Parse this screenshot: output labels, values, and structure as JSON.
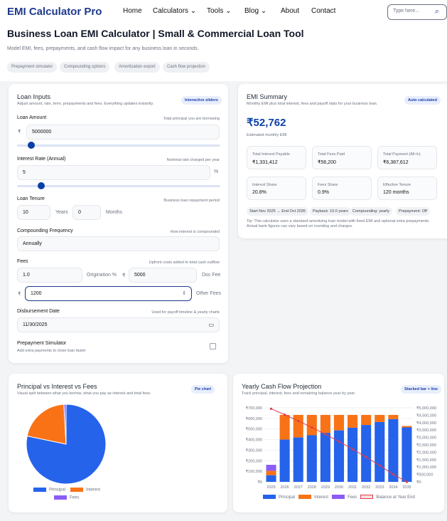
{
  "nav": {
    "logo": "EMI Calculator Pro",
    "links": [
      "Home",
      "Calculators ⌄",
      "Tools ⌄",
      "Blog ⌄",
      "About",
      "Contact"
    ],
    "search_placeholder": "Type here..."
  },
  "header": {
    "title": "Business Loan EMI Calculator | Small & Commercial Loan Tool",
    "subtitle": "Model EMI, fees, prepayments, and cash flow impact for any business loan in seconds.",
    "chips": [
      "Prepayment simulator",
      "Compounding options",
      "Amortization export",
      "Cash flow projection"
    ]
  },
  "inputs": {
    "title": "Loan Inputs",
    "subtitle": "Adjust amount, rate, term, prepayments and fees. Everything updates instantly.",
    "badge": "Interactive sliders",
    "amount": {
      "label": "Loan Amount",
      "hint": "Total principal you are borrowing",
      "prefix": "₹",
      "value": "5000000",
      "slider_fraction": 0.06
    },
    "rate": {
      "label": "Interest Rate (Annual)",
      "hint": "Nominal rate charged per year",
      "value": "5",
      "suffix": "%",
      "slider_fraction": 0.12
    },
    "tenure": {
      "label": "Loan Tenure",
      "hint": "Business loan repayment period",
      "years": "10",
      "years_unit": "Years",
      "months": "0",
      "months_unit": "Months"
    },
    "compounding": {
      "label": "Compounding Frequency",
      "hint": "How interest is compounded",
      "value": "Annually"
    },
    "fees": {
      "label": "Fees",
      "hint": "Upfront costs added to total cash outflow",
      "origination": "1.0",
      "origination_unit": "Origination %",
      "doc_prefix": "₹",
      "doc": "5000",
      "doc_unit": "Doc Fee",
      "other_prefix": "₹",
      "other": "1200",
      "other_unit": "Other Fees"
    },
    "date": {
      "label": "Disbursement Date",
      "hint": "Used for payoff timeline & yearly charts",
      "value": "11/30/2025"
    },
    "prepay": {
      "label": "Prepayment Simulator",
      "hint": "Add extra payments to close loan faster",
      "checked": false
    }
  },
  "summary": {
    "title": "EMI Summary",
    "subtitle": "Monthly EMI plus total interest, fees and payoff stats for your business loan.",
    "badge": "Auto calculated",
    "emi": "₹52,762",
    "emi_label": "Estimated monthly EMI",
    "stats": [
      {
        "k": "Total Interest Payable",
        "v": "₹1,331,412"
      },
      {
        "k": "Total Fees Paid",
        "v": "₹56,200"
      },
      {
        "k": "Total Payment (All-In)",
        "v": "₹6,387,612"
      },
      {
        "k": "Interest Share",
        "v": "20.8%"
      },
      {
        "k": "Fees Share",
        "v": "0.9%"
      },
      {
        "k": "Effective Tenure",
        "v": "120 months"
      }
    ],
    "pills": [
      "Start Nov 2025 → End Oct 2035",
      "Payback: 10.0 years",
      "Compounding: yearly",
      "Prepayment: Off"
    ],
    "tip": "Tip: This calculator uses a standard amortizing loan model with fixed EMI and optional extra prepayments. Actual bank figures can vary based on rounding and charges."
  },
  "colors": {
    "principal": "#2563eb",
    "interest": "#f97316",
    "fees": "#8b5cf6",
    "balance": "#e23b4b",
    "accent": "#1e3a8a"
  },
  "chart_data": [
    {
      "type": "pie",
      "title": "Principal vs Interest vs Fees",
      "subtitle": "Visual split between what you borrow, what you pay as interest and total fees.",
      "badge": "Pie chart",
      "labels": [
        "Principal",
        "Interest",
        "Fees"
      ],
      "values": [
        5000000,
        1331412,
        56200
      ],
      "legend": "bottom"
    },
    {
      "type": "bar",
      "title": "Yearly Cash Flow Projection",
      "subtitle": "Track principal, interest, fees and remaining balance year by year.",
      "badge": "Stacked bar + line",
      "categories": [
        "2025",
        "2026",
        "2027",
        "2028",
        "2029",
        "2030",
        "2031",
        "2032",
        "2033",
        "2034",
        "2035"
      ],
      "series": [
        {
          "name": "Principal",
          "values": [
            63000,
            400000,
            420000,
            441000,
            464000,
            487000,
            512000,
            538000,
            566000,
            594000,
            515000
          ]
        },
        {
          "name": "Interest",
          "values": [
            42000,
            233000,
            213000,
            192000,
            169000,
            146000,
            121000,
            95000,
            67000,
            39000,
            13000
          ]
        },
        {
          "name": "Fees",
          "values": [
            56200,
            0,
            0,
            0,
            0,
            0,
            0,
            0,
            0,
            0,
            0
          ]
        },
        {
          "name": "Balance at Year End",
          "type": "line",
          "axis": "right",
          "values": [
            4937000,
            4537000,
            4117000,
            3676000,
            3212000,
            2725000,
            2213000,
            1675000,
            1109000,
            515000,
            0
          ]
        }
      ],
      "ylim": [
        0,
        700000
      ],
      "y_ticks": [
        "₹0",
        "₹100,000",
        "₹200,000",
        "₹300,000",
        "₹400,000",
        "₹500,000",
        "₹600,000",
        "₹700,000"
      ],
      "y2lim": [
        0,
        5000000
      ],
      "y2_ticks": [
        "₹0",
        "₹500,000",
        "₹1,000,000",
        "₹1,500,000",
        "₹2,000,000",
        "₹2,500,000",
        "₹3,000,000",
        "₹3,500,000",
        "₹4,000,000",
        "₹4,500,000",
        "₹5,000,000"
      ],
      "legend": "bottom",
      "grid": true
    }
  ]
}
